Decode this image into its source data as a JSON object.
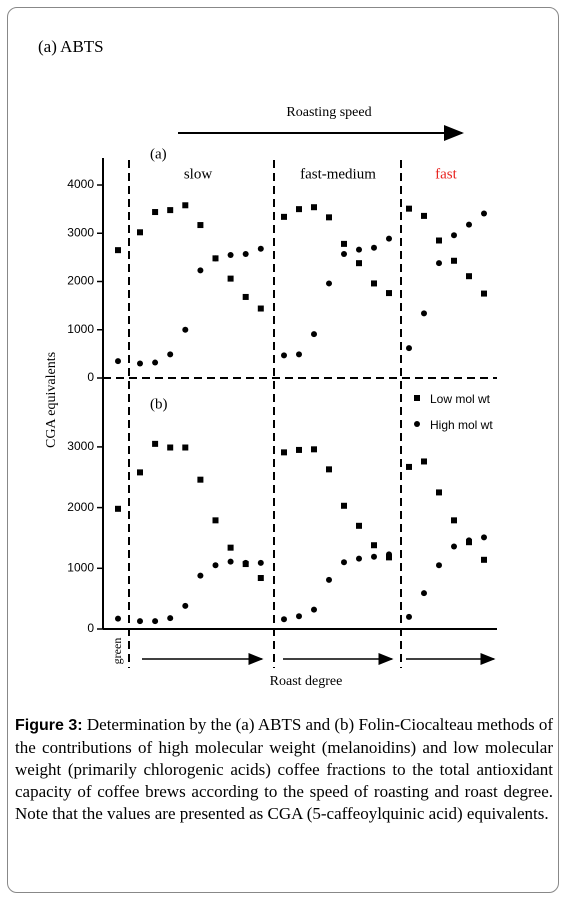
{
  "header": "(a) ABTS",
  "chart_data": [
    {
      "type": "scatter",
      "panel_label": "(a)",
      "y_label": "CGA equivalents",
      "top_label": "Roasting speed",
      "groups": [
        {
          "label": "slow",
          "color": "#000000"
        },
        {
          "label": "fast-medium",
          "color": "#000000"
        },
        {
          "label": "fast",
          "color": "#e8231f"
        }
      ],
      "categories": [
        null,
        null,
        null,
        null,
        null,
        null,
        null,
        null,
        null,
        null,
        null,
        null,
        null,
        null,
        null,
        null,
        null,
        null,
        null,
        null,
        null,
        null,
        null,
        null
      ],
      "ylim": [
        0,
        4560
      ],
      "yticks": [
        0,
        1000,
        2000,
        3000,
        4000
      ],
      "series": [
        {
          "marker": "square",
          "color": "#000000",
          "values": [
            2650,
            3020,
            3440,
            3480,
            3580,
            3170,
            2480,
            2060,
            1680,
            1440,
            3340,
            3500,
            3540,
            3330,
            2780,
            2380,
            1960,
            1760,
            3510,
            3360,
            2850,
            2430,
            2110,
            1750
          ]
        },
        {
          "marker": "circle",
          "color": "#000000",
          "values": [
            350,
            300,
            320,
            490,
            1000,
            2230,
            2480,
            2550,
            2570,
            2680,
            470,
            490,
            910,
            1960,
            2570,
            2660,
            2700,
            2890,
            620,
            1340,
            2380,
            2960,
            3180,
            3410
          ]
        }
      ]
    },
    {
      "type": "scatter",
      "panel_label": "(b)",
      "x_label": "Roast degree",
      "first_label": "green",
      "legend": "upper right",
      "categories": [
        null,
        null,
        null,
        null,
        null,
        null,
        null,
        null,
        null,
        null,
        null,
        null,
        null,
        null,
        null,
        null,
        null,
        null,
        null,
        null,
        null,
        null,
        null,
        null
      ],
      "ylim": [
        0,
        4135
      ],
      "yticks": [
        0,
        1000,
        2000,
        3000
      ],
      "series": [
        {
          "name": "Low mol wt",
          "marker": "square",
          "color": "#000000",
          "values": [
            1980,
            2580,
            3050,
            2990,
            2990,
            2460,
            1790,
            1340,
            1070,
            840,
            2910,
            2950,
            2960,
            2630,
            2030,
            1700,
            1380,
            1180,
            2670,
            2760,
            2250,
            1790,
            1430,
            1140
          ]
        },
        {
          "name": "High mol wt",
          "marker": "circle",
          "color": "#000000",
          "values": [
            170,
            130,
            130,
            180,
            380,
            880,
            1050,
            1110,
            1090,
            1090,
            160,
            210,
            320,
            810,
            1100,
            1160,
            1190,
            1230,
            200,
            590,
            1050,
            1360,
            1460,
            1510
          ]
        }
      ]
    }
  ],
  "caption": {
    "label": "Figure 3:",
    "text": "Determination by the (a) ABTS and (b) Folin-Ciocalteau methods of the contributions of high molecular weight (melanoidins) and low molecular weight (primarily chlorogenic acids) coffee fractions to the total antioxidant capacity of coffee brews according to the speed of roasting and roast degree. Note that the values are presented as CGA (5-caffeoylquinic acid) equivalents."
  }
}
